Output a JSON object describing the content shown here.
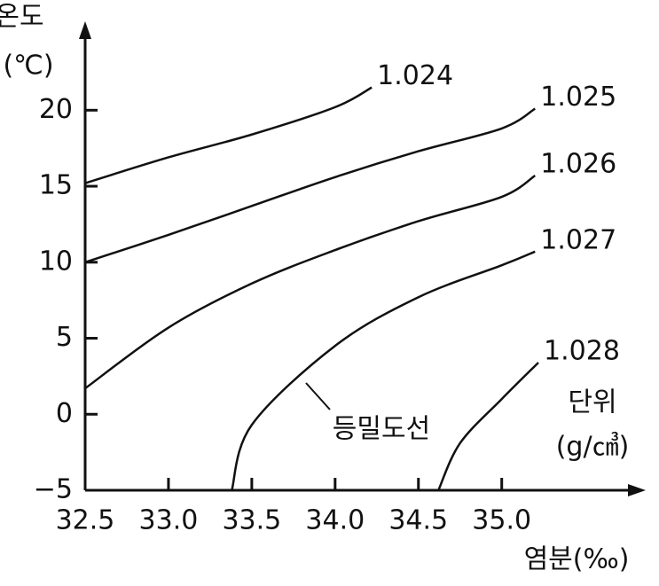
{
  "chart_data": {
    "type": "line",
    "y_label": "온도",
    "y_unit": "(℃)",
    "x_label": "염분(‰)",
    "annotation": "등밀도선",
    "unit_title": "단위",
    "unit": "(g/㎤)",
    "xlim": [
      32.5,
      35.8
    ],
    "ylim": [
      -5,
      25.5
    ],
    "xticks": [
      32.5,
      {
        "value": 33.0,
        "label": "33.0"
      },
      33.5,
      {
        "value": 34.0,
        "label": "34.0"
      },
      34.5,
      {
        "value": 35.0,
        "label": "35.0"
      }
    ],
    "yticks": [
      {
        "value": -5,
        "label": "−5"
      },
      0,
      5,
      10,
      15,
      20
    ],
    "series": [
      {
        "name": "1.024",
        "color": "#111111",
        "x": [
          32.5,
          33.0,
          33.5,
          34.0,
          34.22
        ],
        "values": [
          15.2,
          16.9,
          18.4,
          20.2,
          21.5
        ]
      },
      {
        "name": "1.025",
        "color": "#111111",
        "x": [
          32.5,
          33.0,
          33.5,
          34.0,
          34.5,
          35.0,
          35.2
        ],
        "values": [
          10.0,
          11.8,
          13.7,
          15.6,
          17.3,
          18.8,
          20.1
        ]
      },
      {
        "name": "1.026",
        "color": "#111111",
        "x": [
          32.5,
          33.0,
          33.5,
          34.0,
          34.5,
          35.0,
          35.2
        ],
        "values": [
          1.7,
          5.7,
          8.6,
          10.8,
          12.7,
          14.3,
          15.7
        ]
      },
      {
        "name": "1.027",
        "color": "#111111",
        "x": [
          33.38,
          33.5,
          34.0,
          34.5,
          35.0,
          35.2
        ],
        "values": [
          -5,
          -0.7,
          4.5,
          7.7,
          9.8,
          10.7
        ]
      },
      {
        "name": "1.028",
        "color": "#111111",
        "x": [
          34.62,
          34.75,
          35.0,
          35.22
        ],
        "values": [
          -5,
          -1.9,
          1.0,
          3.4
        ]
      }
    ]
  }
}
